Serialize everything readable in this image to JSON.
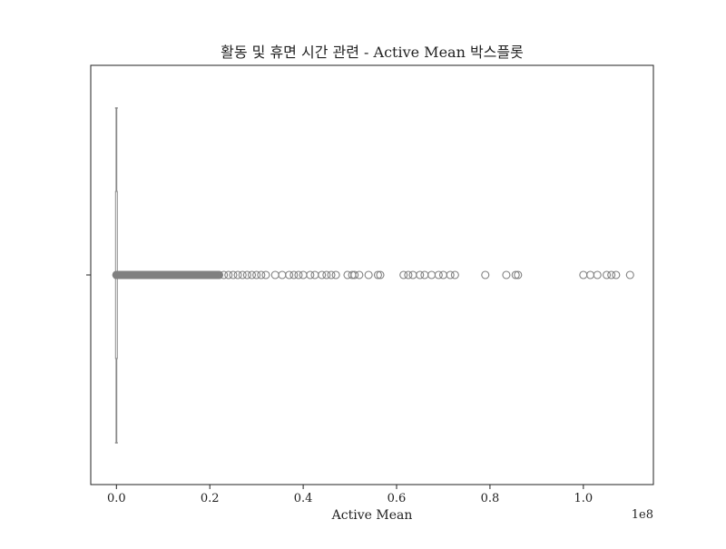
{
  "chart_data": {
    "type": "boxplot",
    "title": "활동 및 휴면 시간 관련 - Active Mean 박스플롯",
    "xlabel": "Active Mean",
    "ylabel": "",
    "x_offset_label": "1e8",
    "xlim": [
      -0.055,
      1.15
    ],
    "x_ticks": [
      0.0,
      0.2,
      0.4,
      0.6,
      0.8,
      1.0
    ],
    "x_tick_labels": [
      "0.0",
      "0.2",
      "0.4",
      "0.6",
      "0.8",
      "1.0"
    ],
    "grid": false,
    "box": {
      "min": 0.0,
      "q1": 0.0,
      "median": 0.0,
      "q3": 0.0,
      "max": 0.0
    },
    "outliers": [
      0.0,
      0.003,
      0.006,
      0.009,
      0.012,
      0.015,
      0.018,
      0.021,
      0.024,
      0.027,
      0.03,
      0.033,
      0.036,
      0.04,
      0.044,
      0.048,
      0.052,
      0.056,
      0.06,
      0.064,
      0.068,
      0.072,
      0.076,
      0.08,
      0.085,
      0.09,
      0.095,
      0.1,
      0.105,
      0.11,
      0.115,
      0.12,
      0.125,
      0.13,
      0.135,
      0.14,
      0.145,
      0.15,
      0.155,
      0.16,
      0.165,
      0.17,
      0.175,
      0.18,
      0.185,
      0.19,
      0.195,
      0.2,
      0.205,
      0.21,
      0.215,
      0.22,
      0.23,
      0.24,
      0.25,
      0.26,
      0.27,
      0.28,
      0.29,
      0.3,
      0.31,
      0.32,
      0.34,
      0.355,
      0.37,
      0.38,
      0.39,
      0.4,
      0.415,
      0.425,
      0.44,
      0.45,
      0.46,
      0.47,
      0.495,
      0.505,
      0.51,
      0.52,
      0.54,
      0.56,
      0.565,
      0.615,
      0.625,
      0.635,
      0.65,
      0.66,
      0.675,
      0.69,
      0.7,
      0.715,
      0.725,
      0.79,
      0.835,
      0.855,
      0.86,
      1.0,
      1.015,
      1.03,
      1.05,
      1.06,
      1.07,
      1.1
    ],
    "box_color": "#8a8a8a",
    "outlier_color": "#808080"
  }
}
